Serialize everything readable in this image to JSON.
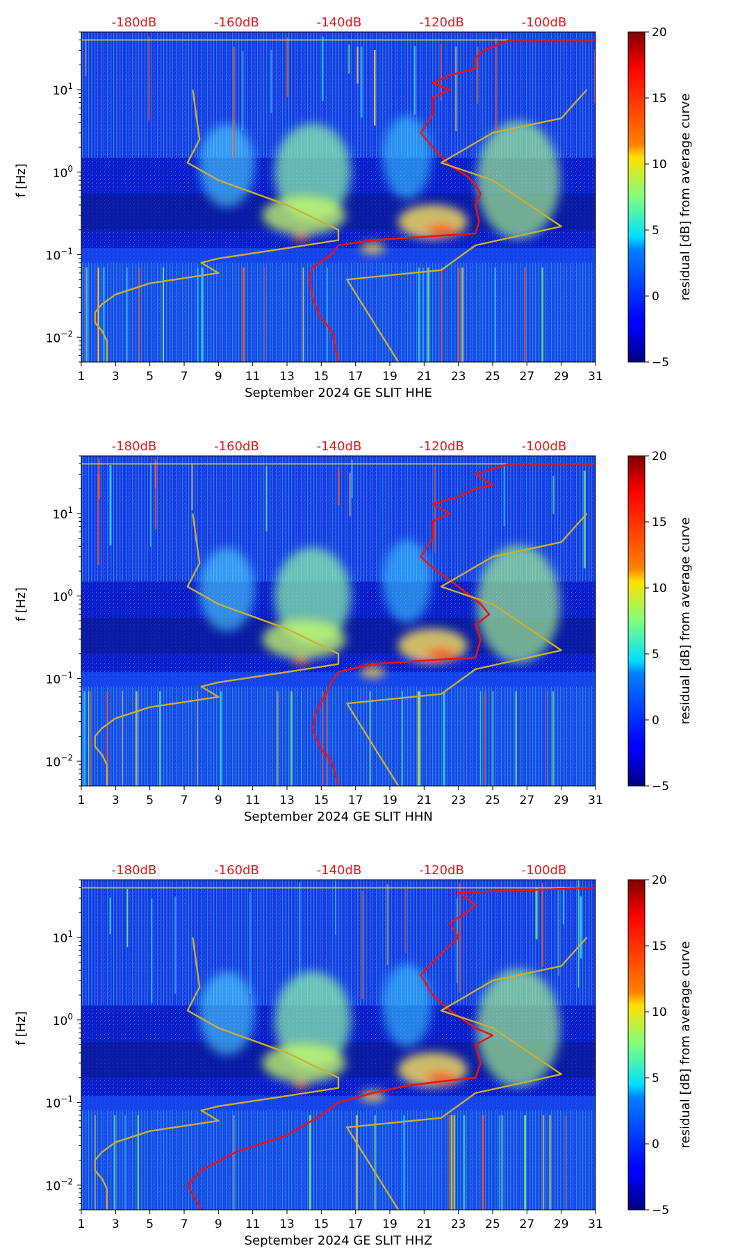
{
  "chart_data": [
    {
      "type": "heatmap",
      "title": "",
      "xlabel": "September 2024 GE SLIT  HHE",
      "ylabel": "f [Hz]",
      "x_ticks": [
        "1",
        "3",
        "5",
        "7",
        "9",
        "11",
        "13",
        "15",
        "17",
        "19",
        "21",
        "23",
        "25",
        "27",
        "29",
        "31"
      ],
      "x_range": [
        1,
        31
      ],
      "y_range": [
        0.005,
        50
      ],
      "y_scale": "log",
      "y_ticks": [
        {
          "value": 10,
          "base": "10",
          "exp": "1"
        },
        {
          "value": 1,
          "base": "10",
          "exp": "0"
        },
        {
          "value": 0.1,
          "base": "10",
          "exp": "−1"
        },
        {
          "value": 0.01,
          "base": "10",
          "exp": "−2"
        }
      ],
      "top_labels": [
        "-180dB",
        "-160dB",
        "-140dB",
        "-120dB",
        "-100dB"
      ],
      "top_label_color": "#e41a1c",
      "colorbar": {
        "label": "residual [dB] from average curve",
        "ticks": [
          "20",
          "15",
          "10",
          "5",
          "0",
          "−5"
        ],
        "range": [
          -5,
          20
        ],
        "colormap": "jet"
      },
      "series": [
        {
          "name": "mean-psd-curve",
          "color": "#ee1111",
          "points": [
            [
              16,
              0.005
            ],
            [
              15.6,
              0.012
            ],
            [
              14.9,
              0.018
            ],
            [
              14.5,
              0.03
            ],
            [
              14.3,
              0.05
            ],
            [
              14.5,
              0.07
            ],
            [
              15.6,
              0.1
            ],
            [
              16,
              0.13
            ],
            [
              18,
              0.15
            ],
            [
              20,
              0.16
            ],
            [
              22,
              0.17
            ],
            [
              24,
              0.18
            ],
            [
              24.2,
              0.25
            ],
            [
              24,
              0.4
            ],
            [
              24.3,
              0.55
            ],
            [
              24,
              0.7
            ],
            [
              23.5,
              0.9
            ],
            [
              22.5,
              1.2
            ],
            [
              21.5,
              2
            ],
            [
              20.8,
              3
            ],
            [
              21.5,
              5
            ],
            [
              21.5,
              8
            ],
            [
              22.5,
              10
            ],
            [
              21.5,
              12
            ],
            [
              22.5,
              15
            ],
            [
              24,
              18
            ],
            [
              24,
              24
            ],
            [
              24.5,
              30
            ],
            [
              26,
              40
            ],
            [
              31,
              40
            ]
          ]
        },
        {
          "name": "noise-model-curve",
          "color": "#c8b033",
          "points": [
            [
              2.5,
              0.005
            ],
            [
              2.5,
              0.009
            ],
            [
              2.2,
              0.012
            ],
            [
              1.8,
              0.015
            ],
            [
              1.8,
              0.02
            ],
            [
              2.2,
              0.025
            ],
            [
              3,
              0.033
            ],
            [
              5,
              0.045
            ],
            [
              9,
              0.06
            ],
            [
              8,
              0.08
            ],
            [
              9,
              0.09
            ],
            [
              13,
              0.12
            ],
            [
              16,
              0.15
            ],
            [
              16,
              0.2
            ],
            [
              13,
              0.4
            ],
            [
              9,
              0.8
            ],
            [
              7.2,
              1.3
            ],
            [
              7.9,
              2.5
            ],
            [
              7.5,
              10
            ]
          ]
        },
        {
          "name": "noise-model-curve-2",
          "color": "#c8b033",
          "points": [
            [
              19.5,
              0.005
            ],
            [
              16.5,
              0.05
            ],
            [
              22,
              0.065
            ],
            [
              24,
              0.13
            ],
            [
              29,
              0.22
            ],
            [
              25,
              0.8
            ],
            [
              22,
              1.3
            ],
            [
              25,
              3
            ],
            [
              29,
              4.5
            ],
            [
              30.5,
              10
            ]
          ]
        }
      ]
    },
    {
      "type": "heatmap",
      "title": "",
      "xlabel": "September 2024 GE SLIT  HHN",
      "ylabel": "f [Hz]",
      "x_ticks": [
        "1",
        "3",
        "5",
        "7",
        "9",
        "11",
        "13",
        "15",
        "17",
        "19",
        "21",
        "23",
        "25",
        "27",
        "29",
        "31"
      ],
      "x_range": [
        1,
        31
      ],
      "y_range": [
        0.005,
        50
      ],
      "y_scale": "log",
      "y_ticks": [
        {
          "value": 10,
          "base": "10",
          "exp": "1"
        },
        {
          "value": 1,
          "base": "10",
          "exp": "0"
        },
        {
          "value": 0.1,
          "base": "10",
          "exp": "−1"
        },
        {
          "value": 0.01,
          "base": "10",
          "exp": "−2"
        }
      ],
      "top_labels": [
        "-180dB",
        "-160dB",
        "-140dB",
        "-120dB",
        "-100dB"
      ],
      "top_label_color": "#e41a1c",
      "colorbar": {
        "label": "residual [dB] from average curve",
        "ticks": [
          "20",
          "15",
          "10",
          "5",
          "0",
          "−5"
        ],
        "range": [
          -5,
          20
        ],
        "colormap": "jet"
      },
      "series": [
        {
          "name": "mean-psd-curve",
          "color": "#ee1111",
          "points": [
            [
              16,
              0.005
            ],
            [
              15.6,
              0.01
            ],
            [
              14.9,
              0.015
            ],
            [
              14.5,
              0.025
            ],
            [
              14.7,
              0.04
            ],
            [
              15.2,
              0.06
            ],
            [
              15.6,
              0.09
            ],
            [
              16,
              0.12
            ],
            [
              18,
              0.15
            ],
            [
              20,
              0.16
            ],
            [
              22,
              0.17
            ],
            [
              24,
              0.18
            ],
            [
              24.3,
              0.3
            ],
            [
              24,
              0.45
            ],
            [
              24.8,
              0.6
            ],
            [
              24.3,
              0.8
            ],
            [
              23,
              1.3
            ],
            [
              21.5,
              2.2
            ],
            [
              20.8,
              3
            ],
            [
              21.5,
              5
            ],
            [
              21.5,
              8
            ],
            [
              22.5,
              10
            ],
            [
              21.5,
              13
            ],
            [
              23,
              16
            ],
            [
              24,
              20
            ],
            [
              25,
              22
            ],
            [
              24,
              30
            ],
            [
              26,
              40
            ],
            [
              31,
              40
            ]
          ]
        },
        {
          "name": "noise-model-curve",
          "color": "#c8b033",
          "points": [
            [
              2.5,
              0.005
            ],
            [
              2.5,
              0.009
            ],
            [
              2.2,
              0.012
            ],
            [
              1.8,
              0.015
            ],
            [
              1.8,
              0.02
            ],
            [
              2.2,
              0.025
            ],
            [
              3,
              0.033
            ],
            [
              5,
              0.045
            ],
            [
              9,
              0.06
            ],
            [
              8,
              0.08
            ],
            [
              9,
              0.09
            ],
            [
              13,
              0.12
            ],
            [
              16,
              0.15
            ],
            [
              16,
              0.2
            ],
            [
              13,
              0.4
            ],
            [
              9,
              0.8
            ],
            [
              7.2,
              1.3
            ],
            [
              7.9,
              2.5
            ],
            [
              7.5,
              10
            ]
          ]
        },
        {
          "name": "noise-model-curve-2",
          "color": "#c8b033",
          "points": [
            [
              19.5,
              0.005
            ],
            [
              16.5,
              0.05
            ],
            [
              22,
              0.065
            ],
            [
              24,
              0.13
            ],
            [
              29,
              0.22
            ],
            [
              25,
              0.8
            ],
            [
              22,
              1.3
            ],
            [
              25,
              3
            ],
            [
              29,
              4.5
            ],
            [
              30.5,
              10
            ]
          ]
        }
      ]
    },
    {
      "type": "heatmap",
      "title": "",
      "xlabel": "September 2024 GE SLIT  HHZ",
      "ylabel": "f [Hz]",
      "x_ticks": [
        "1",
        "3",
        "5",
        "7",
        "9",
        "11",
        "13",
        "15",
        "17",
        "19",
        "21",
        "23",
        "25",
        "27",
        "29",
        "31"
      ],
      "x_range": [
        1,
        31
      ],
      "y_range": [
        0.005,
        50
      ],
      "y_scale": "log",
      "y_ticks": [
        {
          "value": 10,
          "base": "10",
          "exp": "1"
        },
        {
          "value": 1,
          "base": "10",
          "exp": "0"
        },
        {
          "value": 0.1,
          "base": "10",
          "exp": "−1"
        },
        {
          "value": 0.01,
          "base": "10",
          "exp": "−2"
        }
      ],
      "top_labels": [
        "-180dB",
        "-160dB",
        "-140dB",
        "-120dB",
        "-100dB"
      ],
      "top_label_color": "#e41a1c",
      "colorbar": {
        "label": "residual [dB] from average curve",
        "ticks": [
          "20",
          "15",
          "10",
          "5",
          "0",
          "−5"
        ],
        "range": [
          -5,
          20
        ],
        "colormap": "jet"
      },
      "series": [
        {
          "name": "mean-psd-curve",
          "color": "#ee1111",
          "points": [
            [
              8,
              0.005
            ],
            [
              7.2,
              0.01
            ],
            [
              8,
              0.015
            ],
            [
              10,
              0.025
            ],
            [
              13,
              0.04
            ],
            [
              15,
              0.07
            ],
            [
              16,
              0.1
            ],
            [
              18,
              0.13
            ],
            [
              20,
              0.16
            ],
            [
              22,
              0.18
            ],
            [
              24,
              0.2
            ],
            [
              24.3,
              0.3
            ],
            [
              24,
              0.5
            ],
            [
              25,
              0.65
            ],
            [
              24,
              0.8
            ],
            [
              22.5,
              1.3
            ],
            [
              21.5,
              2
            ],
            [
              20.8,
              3.5
            ],
            [
              21.5,
              5
            ],
            [
              22.5,
              8
            ],
            [
              23,
              10
            ],
            [
              22.5,
              15
            ],
            [
              23.5,
              20
            ],
            [
              24,
              25
            ],
            [
              23,
              35
            ],
            [
              31,
              40
            ]
          ]
        },
        {
          "name": "noise-model-curve",
          "color": "#c8b033",
          "points": [
            [
              2.5,
              0.005
            ],
            [
              2.5,
              0.009
            ],
            [
              2.2,
              0.012
            ],
            [
              1.8,
              0.015
            ],
            [
              1.8,
              0.02
            ],
            [
              2.2,
              0.025
            ],
            [
              3,
              0.033
            ],
            [
              5,
              0.045
            ],
            [
              9,
              0.06
            ],
            [
              8,
              0.08
            ],
            [
              9,
              0.09
            ],
            [
              13,
              0.12
            ],
            [
              16,
              0.15
            ],
            [
              16,
              0.2
            ],
            [
              13,
              0.4
            ],
            [
              9,
              0.8
            ],
            [
              7.2,
              1.3
            ],
            [
              7.9,
              2.5
            ],
            [
              7.5,
              10
            ]
          ]
        },
        {
          "name": "noise-model-curve-2",
          "color": "#c8b033",
          "points": [
            [
              19.5,
              0.005
            ],
            [
              16.5,
              0.05
            ],
            [
              22,
              0.065
            ],
            [
              24,
              0.13
            ],
            [
              29,
              0.22
            ],
            [
              25,
              0.8
            ],
            [
              22,
              1.3
            ],
            [
              25,
              3
            ],
            [
              29,
              4.5
            ],
            [
              30.5,
              10
            ]
          ]
        }
      ]
    }
  ]
}
